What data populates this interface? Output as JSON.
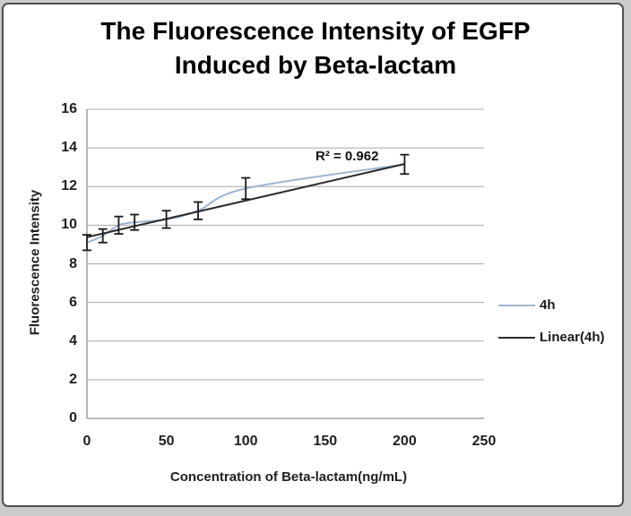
{
  "window": {
    "outer_background": "#cbcbcb",
    "panel_background": "#ffffff",
    "panel_border_color": "#505050"
  },
  "colors": {
    "gridline": "#a8a8a8",
    "axis": "#8f8f8f",
    "error_bar": "#1a1a1a",
    "tick_text": "#1f1f1f",
    "title_text": "#000000",
    "series_4h": "#9db5d0",
    "series_linear": "#2b2b2b"
  },
  "chart_data": {
    "type": "line",
    "title": "The Fluorescence Intensity of EGFP Induced by Beta-lactam",
    "xlabel": "Concentration of Beta-lactam(ng/mL)",
    "ylabel": "Fluorescence Intensity",
    "xlim": [
      0,
      250
    ],
    "ylim": [
      0,
      16
    ],
    "x_ticks": [
      0,
      50,
      100,
      150,
      200,
      250
    ],
    "y_ticks": [
      0,
      2,
      4,
      6,
      8,
      10,
      12,
      14,
      16
    ],
    "grid": "horizontal-only",
    "legend_position": "right-middle",
    "annotation": {
      "text": "R² = 0.962",
      "r_squared": 0.962
    },
    "series": [
      {
        "name": "4h",
        "role": "data",
        "line_style": "smooth",
        "color": "#9db5d0",
        "x": [
          0,
          10,
          20,
          30,
          50,
          70,
          100,
          200
        ],
        "y": [
          9.1,
          9.45,
          10.0,
          10.15,
          10.3,
          10.75,
          11.9,
          13.15
        ],
        "y_err": [
          0.4,
          0.35,
          0.45,
          0.4,
          0.45,
          0.45,
          0.55,
          0.5
        ],
        "error_bar_color": "#1a1a1a"
      },
      {
        "name": "Linear(4h)",
        "role": "linear-trendline",
        "line_style": "straight",
        "color": "#2b2b2b",
        "x": [
          0,
          200
        ],
        "y": [
          9.38,
          13.17
        ]
      }
    ]
  }
}
